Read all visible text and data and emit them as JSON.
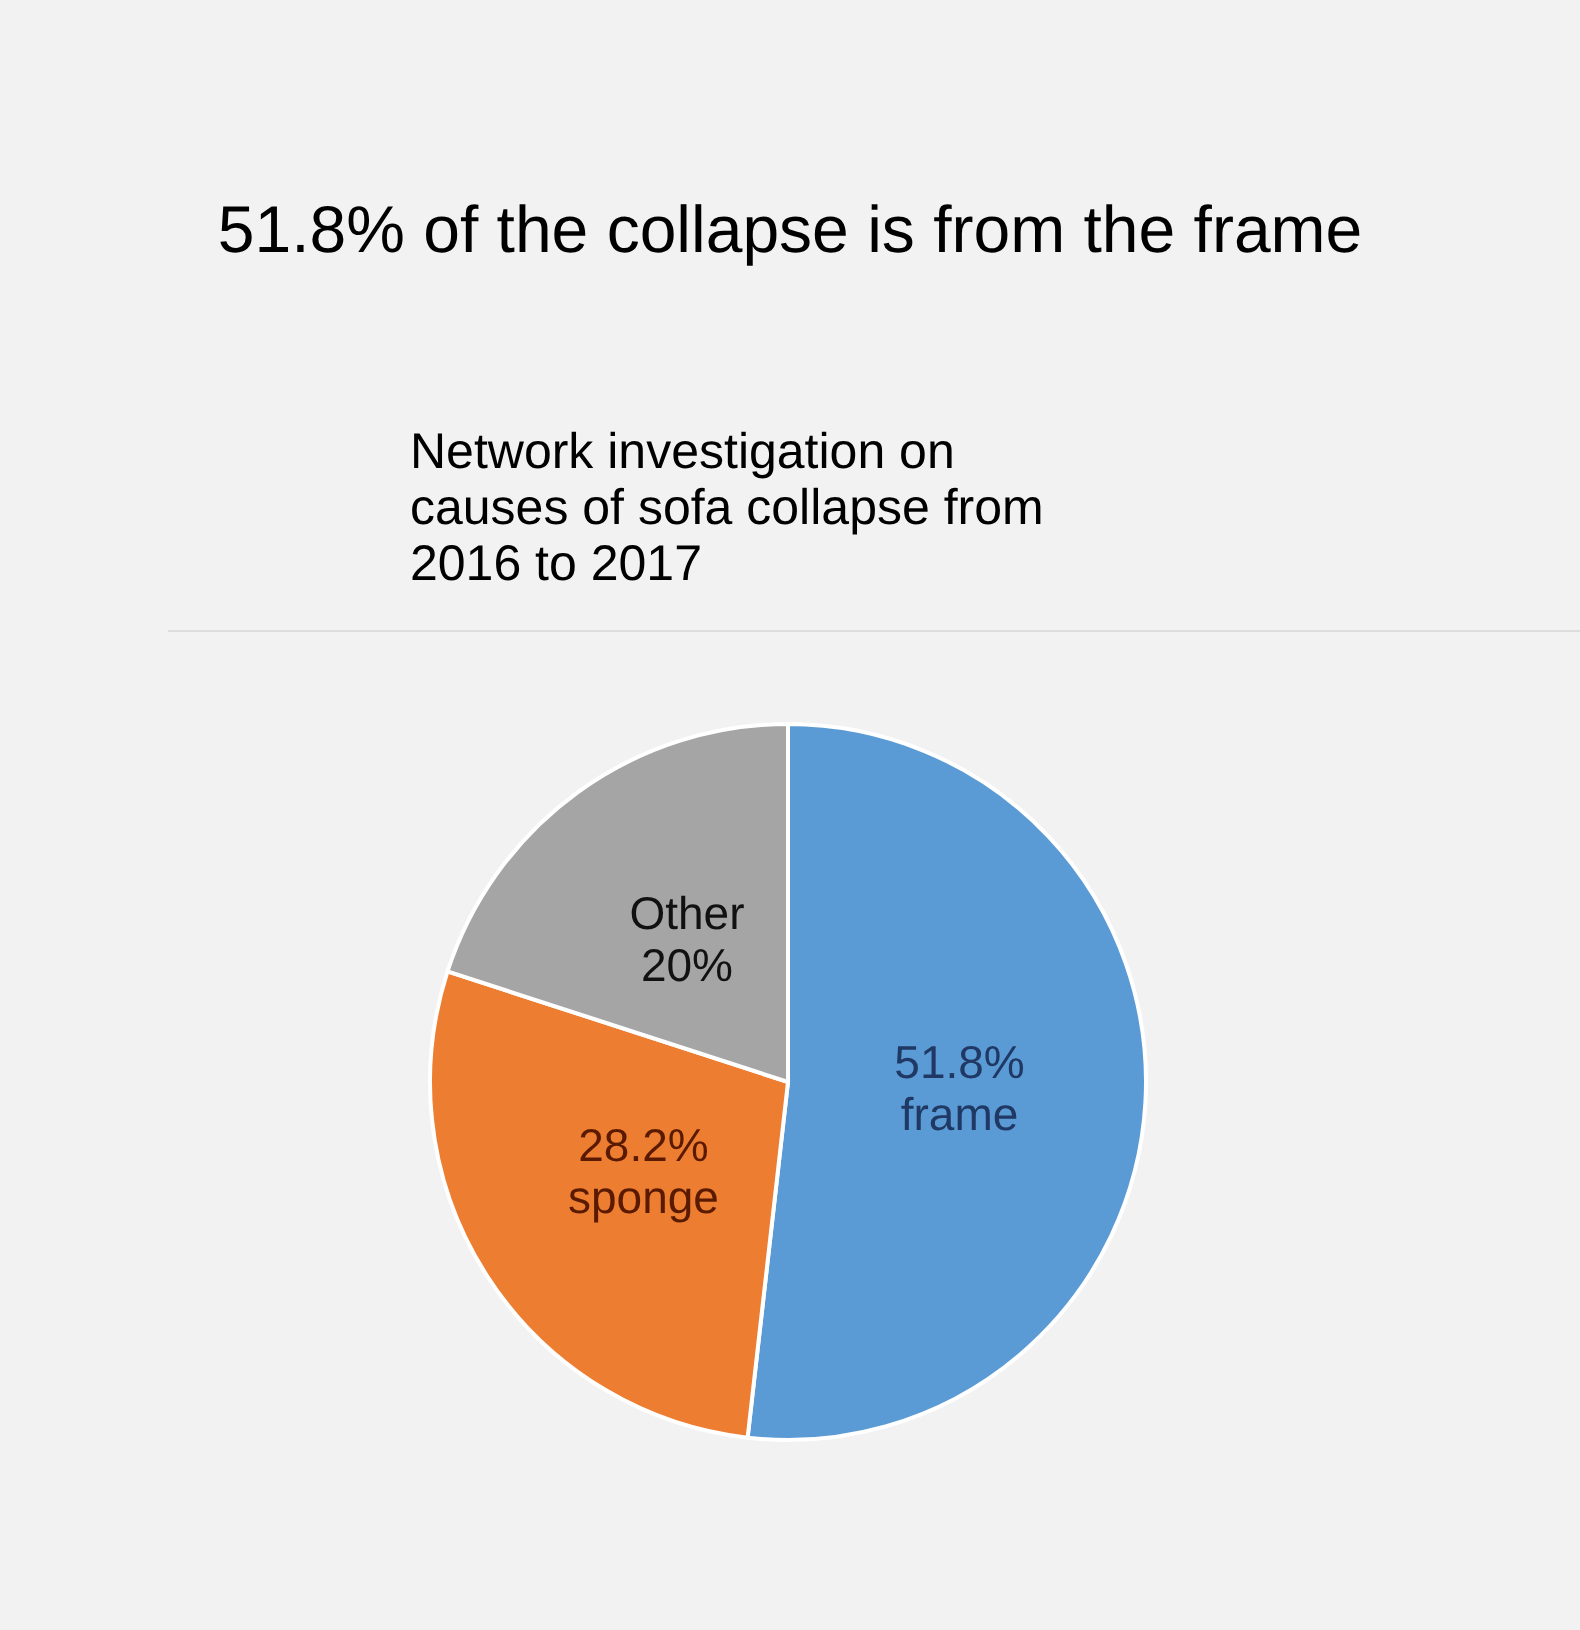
{
  "chart_data": {
    "type": "pie",
    "title": "51.8% of the collapse is from the frame",
    "subtitle": "Network investigation on causes of sofa collapse from 2016 to 2017",
    "categories": [
      "frame",
      "sponge",
      "Other"
    ],
    "values": [
      51.8,
      28.2,
      20
    ],
    "colors": [
      "#5b9bd5",
      "#ed7d31",
      "#a5a5a5"
    ],
    "value_labels": [
      "51.8%",
      "28.2%",
      "20%"
    ],
    "legend": false
  }
}
